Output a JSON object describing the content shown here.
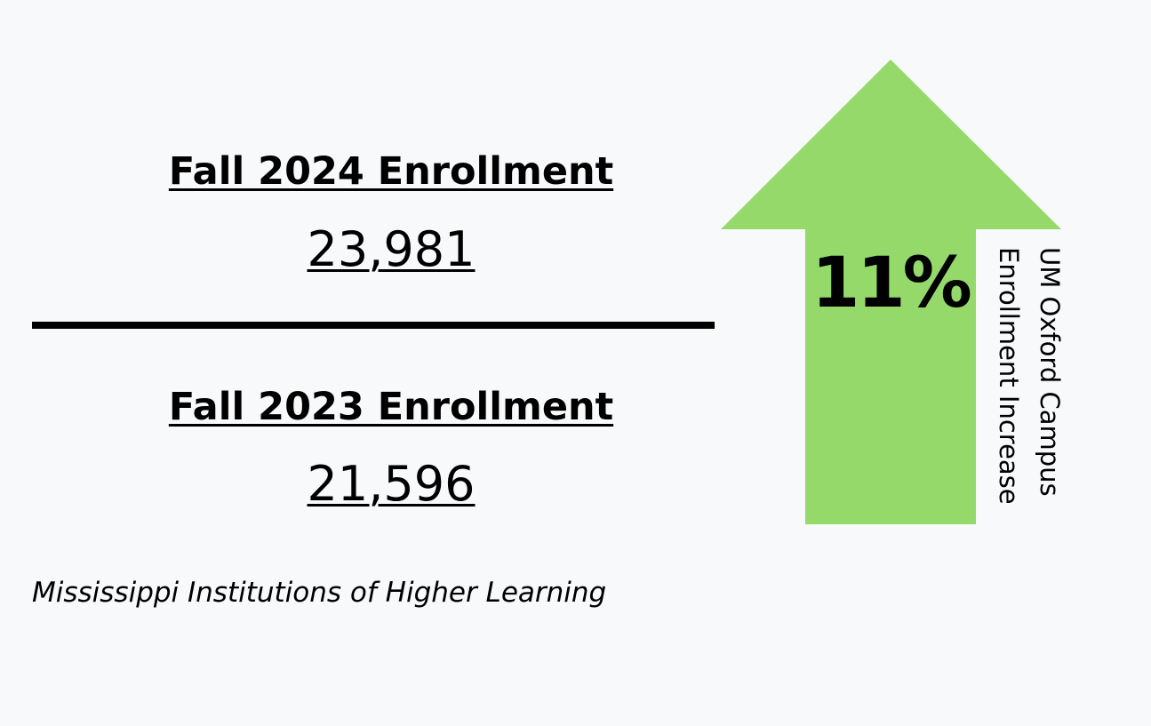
{
  "enrollment": {
    "current": {
      "heading": "Fall 2024 Enrollment",
      "value": "23,981"
    },
    "previous": {
      "heading": "Fall 2023 Enrollment",
      "value": "21,596"
    }
  },
  "increase": {
    "percent_text": "11%",
    "label_line1": "UM Oxford Campus",
    "label_line2": "Enrollment Increase"
  },
  "source": "Mississippi Institutions of Higher Learning",
  "colors": {
    "background": "#f8f9fa",
    "arrow": "#95d96b",
    "text": "#000000"
  },
  "icons": {
    "arrow": "up-arrow-icon"
  }
}
